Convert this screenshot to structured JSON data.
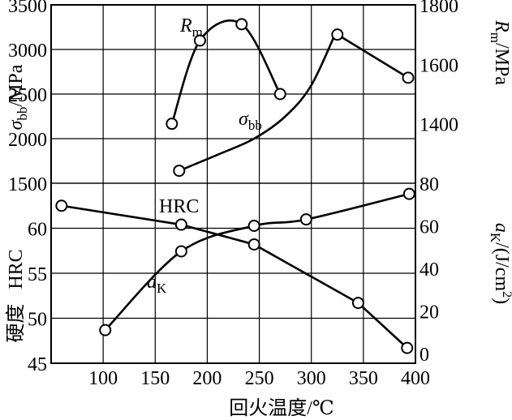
{
  "chart_data": {
    "type": "line",
    "xlabel": "回火温度/℃",
    "x_ticks": [
      100,
      150,
      200,
      250,
      300,
      350,
      400
    ],
    "xlim": [
      50,
      400
    ],
    "axes": {
      "sigma_bb": {
        "label_main": "σ",
        "label_sub": "bb",
        "label_unit": "/MPa",
        "ylim": [
          1500,
          3500
        ],
        "ticks": [
          1500,
          2000,
          2500,
          3000,
          3500
        ]
      },
      "Rm": {
        "label_main": "R",
        "label_sub": "m",
        "label_unit": "/MPa",
        "ylim": [
          1200,
          1800
        ],
        "ticks": [
          1400,
          1600,
          1800
        ]
      },
      "HRC": {
        "label": "硬度   HRC",
        "ylim": [
          45,
          65
        ],
        "ticks": [
          45,
          50,
          55,
          60
        ]
      },
      "aK": {
        "label_main": "a",
        "label_sub": "K",
        "label_unit": "/(J/cm",
        "label_sup": "2",
        "label_close": ")",
        "ylim": [
          0,
          80
        ],
        "ticks": [
          0,
          20,
          40,
          60,
          80
        ]
      }
    },
    "series": [
      {
        "name": "R_m",
        "label_main": "R",
        "label_sub": "m",
        "axis": "Rm",
        "segments": [
          {
            "x": [
              166,
              193,
              233,
              270
            ],
            "y": [
              1400,
              1680,
              1735,
              1500
            ]
          },
          {
            "x": [
              325,
              393
            ],
            "y": [
              1700,
              1555
            ]
          }
        ]
      },
      {
        "name": "σ_bb",
        "label_main": "σ",
        "label_sub": "bb",
        "axis": "sigma_bb",
        "segments": [
          {
            "x": [
              173,
              210,
              245,
              275,
              300,
              325
            ],
            "y": [
              1640,
              1820,
              2000,
              2250,
              2600,
              3230
            ]
          }
        ]
      },
      {
        "name": "HRC",
        "label": "HRC",
        "axis": "HRC",
        "segments": [
          {
            "x": [
              60,
              175,
              245,
              345,
              392
            ],
            "y": [
              62.5,
              60.4,
              58.2,
              51.7,
              46.7
            ]
          }
        ]
      },
      {
        "name": "a_K",
        "label_main": "a",
        "label_sub": "K",
        "axis": "aK",
        "segments": [
          {
            "x": [
              102,
              175,
              245,
              295,
              394
            ],
            "y": [
              11,
              48,
              60,
              63,
              75
            ]
          }
        ]
      }
    ]
  }
}
